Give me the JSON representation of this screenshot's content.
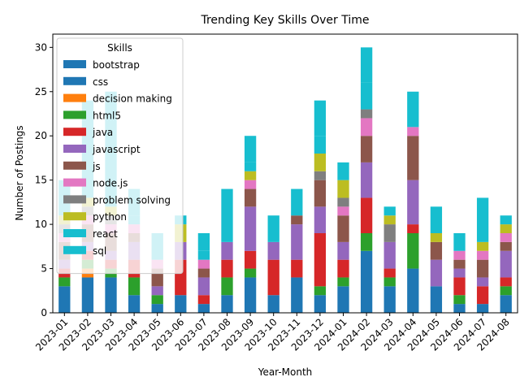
{
  "chart_data": {
    "type": "bar",
    "stacked": true,
    "title": "Trending Key Skills Over Time",
    "xlabel": "Year-Month",
    "ylabel": "Number of Postings",
    "ylim": [
      0,
      31.5
    ],
    "yticks": [
      0,
      5,
      10,
      15,
      20,
      25,
      30
    ],
    "grid": false,
    "legend": {
      "title": "Skills",
      "placement": "top-left"
    },
    "categories": [
      "2023-01",
      "2023-02",
      "2023-03",
      "2023-04",
      "2023-05",
      "2023-06",
      "2023-07",
      "2023-08",
      "2023-09",
      "2023-10",
      "2023-11",
      "2023-12",
      "2024-01",
      "2024-02",
      "2024-03",
      "2024-04",
      "2024-05",
      "2024-06",
      "2024-07",
      "2024-08"
    ],
    "series": [
      {
        "name": "bootstrap",
        "color": "#1f77b4",
        "values": [
          3,
          4,
          4,
          2,
          1,
          2,
          1,
          2,
          4,
          2,
          4,
          2,
          3,
          7,
          3,
          5,
          3,
          1,
          1,
          2
        ]
      },
      {
        "name": "css",
        "color": "#1f77b4",
        "values": [
          0,
          0,
          0,
          0,
          0,
          0,
          0,
          0,
          0,
          0,
          0,
          0,
          0,
          0,
          0,
          0,
          0,
          0,
          0,
          0
        ]
      },
      {
        "name": "decision making",
        "color": "#ff7f0e",
        "values": [
          0,
          1,
          0,
          0,
          0,
          0,
          0,
          0,
          0,
          0,
          0,
          0,
          0,
          0,
          0,
          0,
          0,
          0,
          0,
          0
        ]
      },
      {
        "name": "html5",
        "color": "#2ca02c",
        "values": [
          1,
          1,
          1,
          2,
          1,
          0,
          0,
          2,
          1,
          0,
          0,
          1,
          1,
          2,
          1,
          4,
          0,
          1,
          0,
          1
        ]
      },
      {
        "name": "java",
        "color": "#d62728",
        "values": [
          1,
          1,
          1,
          2,
          0,
          4,
          1,
          2,
          2,
          4,
          2,
          6,
          2,
          4,
          1,
          1,
          0,
          2,
          2,
          1
        ]
      },
      {
        "name": "javascript",
        "color": "#9467bd",
        "values": [
          1,
          1,
          1,
          2,
          1,
          2,
          2,
          2,
          5,
          2,
          4,
          3,
          2,
          4,
          3,
          5,
          3,
          1,
          1,
          3
        ]
      },
      {
        "name": "js",
        "color": "#8c564b",
        "values": [
          2,
          2,
          2,
          1,
          2,
          0,
          1,
          0,
          2,
          0,
          1,
          3,
          3,
          3,
          0,
          5,
          2,
          1,
          2,
          1
        ]
      },
      {
        "name": "node.js",
        "color": "#e377c2",
        "values": [
          1,
          1,
          1,
          1,
          1,
          0,
          1,
          0,
          1,
          0,
          0,
          0,
          1,
          2,
          0,
          1,
          0,
          1,
          1,
          1
        ]
      },
      {
        "name": "problem solving",
        "color": "#7f7f7f",
        "values": [
          1,
          1,
          1,
          0,
          0,
          0,
          0,
          0,
          0,
          0,
          0,
          1,
          1,
          1,
          2,
          0,
          0,
          0,
          0,
          0
        ]
      },
      {
        "name": "python",
        "color": "#bcbd22",
        "values": [
          1,
          1,
          1,
          0,
          0,
          2,
          0,
          0,
          1,
          0,
          0,
          2,
          2,
          0,
          1,
          0,
          1,
          0,
          1,
          1
        ]
      },
      {
        "name": "react",
        "color": "#17becf",
        "values": [
          2,
          1,
          1,
          1,
          0,
          1,
          1,
          1,
          1,
          0,
          0,
          2,
          0,
          3,
          0,
          0,
          0,
          0,
          0,
          0
        ]
      },
      {
        "name": "sql",
        "color": "#17becf",
        "values": [
          2,
          10,
          12,
          3,
          3,
          0,
          2,
          5,
          3,
          3,
          3,
          4,
          2,
          4,
          1,
          4,
          3,
          2,
          5,
          1
        ]
      }
    ]
  }
}
